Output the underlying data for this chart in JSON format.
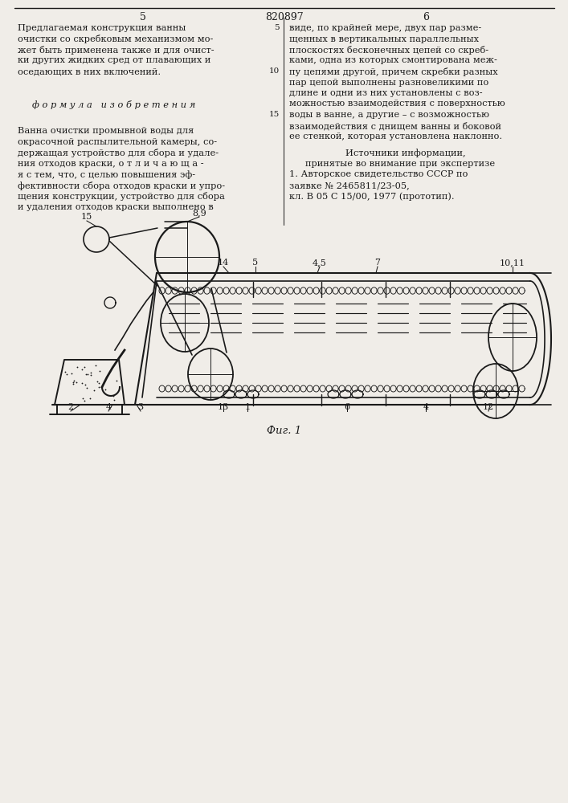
{
  "bg_color": "#f0ede8",
  "line_color": "#1a1a1a",
  "text_color": "#1a1a1a",
  "page_num_left": "5",
  "page_num_right": "6",
  "patent_num": "820897",
  "fig_caption": "Фиг. 1",
  "left_col": [
    "Предлагаемая конструкция ванны",
    "очистки со скребковым механизмом мо-",
    "жет быть применена также и для очист-",
    "ки других жидких сред от плавающих и",
    "оседающих в них включений."
  ],
  "formula_line": "ф о р м у л а   и з о б р е т е н и я",
  "claim_lines": [
    "Ванна очистки промывной воды для",
    "окрасочной распылительной камеры, со-",
    "держащая устройство для сбора и удале-",
    "ния отходов краски, о т л и ч а ю щ а -",
    "я с тем, что, с целью повышения эф-",
    "фективности сбора отходов краски и упро-",
    "щения конструкции, устройство для сбора",
    "и удаления отходов краски выполнено в"
  ],
  "right_col": [
    "виде, по крайней мере, двух пар разме-",
    "щенных в вертикальных параллельных",
    "плоскостях бесконечных цепей со скреб-",
    "ками, одна из которых смонтирована меж-",
    "пу цепями другой, причем скребки разных",
    "пар цепой выполнены разновеликими по",
    "длине и одни из них установлены с воз-",
    "можностью взаимодействия с поверхностью",
    "воды в ванне, а другие – с возможностью",
    "взаимодействия с днищем ванны и боковой",
    "ее стенкой, которая установлена наклонно."
  ],
  "sources_head": "Источники информации,",
  "sources_sub": "принятые во внимание при экспертизе",
  "source1a": "1. Авторское свидетельство СССР по",
  "source1b": "заявке № 2465811/23-05,",
  "source1c": "кл. В 05 С 15/00, 1977 (прототип)."
}
